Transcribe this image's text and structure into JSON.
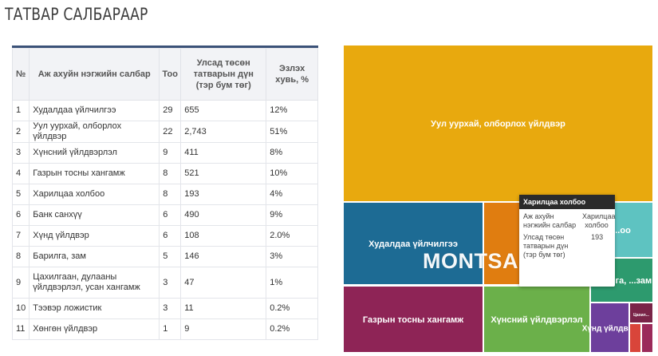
{
  "page": {
    "title": "ТАТВАР САЛБАРААР"
  },
  "table": {
    "headers": [
      "№",
      "Аж ахуйн нэгжийн салбар",
      "Тоо",
      "Улсад төсөн татварын дүн (тэр бум төг)",
      "Эзлэх хувь, %"
    ],
    "rows": [
      [
        "1",
        "Худалдаа үйлчилгээ",
        "29",
        "655",
        "12%"
      ],
      [
        "2",
        "Уул уурхай, олборлох үйлдвэр",
        "22",
        "2,743",
        "51%"
      ],
      [
        "3",
        "Хүнсний үйлдвэрлэл",
        "9",
        "411",
        "8%"
      ],
      [
        "4",
        "Газрын тосны хангамж",
        "8",
        "521",
        "10%"
      ],
      [
        "5",
        "Харилцаа холбоо",
        "8",
        "193",
        "4%"
      ],
      [
        "6",
        "Банк санхүү",
        "6",
        "490",
        "9%"
      ],
      [
        "7",
        "Хүнд үйлдвэр",
        "6",
        "108",
        "2.0%"
      ],
      [
        "8",
        "Барилга, зам",
        "5",
        "146",
        "3%"
      ],
      [
        "9",
        "Цахилгаан, дулааны үйлдвэрлэл, усан хангамж",
        "3",
        "47",
        "1%"
      ],
      [
        "10",
        "Тээвэр ложистик",
        "3",
        "11",
        "0.2%"
      ],
      [
        "11",
        "Хөнгөн үйлдвэр",
        "1",
        "9",
        "0.2%"
      ]
    ]
  },
  "chart_data": {
    "type": "treemap",
    "title": "",
    "nodes": [
      {
        "name": "Уул уурхай, олборлох үйлдвэр",
        "value": 2743,
        "label": "Уул уурхай, олборлох үйлдвэр",
        "color": "#e8a90e"
      },
      {
        "name": "Худалдаа үйлчилгээ",
        "value": 655,
        "label": "Худалдаа үйлчилгээ",
        "color": "#1d6b94"
      },
      {
        "name": "Газрын тосны хангамж",
        "value": 521,
        "label": "Газрын тосны хангамж",
        "color": "#8e2456"
      },
      {
        "name": "Банк санхүү",
        "value": 490,
        "label": "Ба",
        "color": "#e07d10"
      },
      {
        "name": "Хүнсний үйлдвэрлэл",
        "value": 411,
        "label": "Хүнсний үйлдвэрлэл",
        "color": "#6bb04a"
      },
      {
        "name": "Харилцаа холбоо",
        "value": 193,
        "label": "...оо",
        "color": "#5ec3c1"
      },
      {
        "name": "Барилга, зам",
        "value": 146,
        "label": "...рилга, ...зам",
        "color": "#2d9a6e"
      },
      {
        "name": "Хүнд үйлдвэр",
        "value": 108,
        "label": "Хүнд үйлдвэр",
        "color": "#6d3f9c"
      },
      {
        "name": "Цахилгаан, дулааны үйлдвэрлэл, усан хангамж",
        "value": 47,
        "label": "Цахил...",
        "color": "#7a2448"
      },
      {
        "name": "Тээвэр ложистик",
        "value": 11,
        "label": "",
        "color": "#d9453a"
      },
      {
        "name": "Хөнгөн үйлдвэр",
        "value": 9,
        "label": "",
        "color": "#9b2a5a"
      }
    ]
  },
  "tooltip": {
    "title": "Харилцаа холбоо",
    "row1_key": "Аж ахуйн нэгжийн салбар",
    "row1_val": "Харилцаа холбоо",
    "row2_key": "Улсад төсөн татварын дүн (тэр бум төг)",
    "row2_val": "193"
  },
  "watermark": {
    "text": "MONTSAME"
  }
}
